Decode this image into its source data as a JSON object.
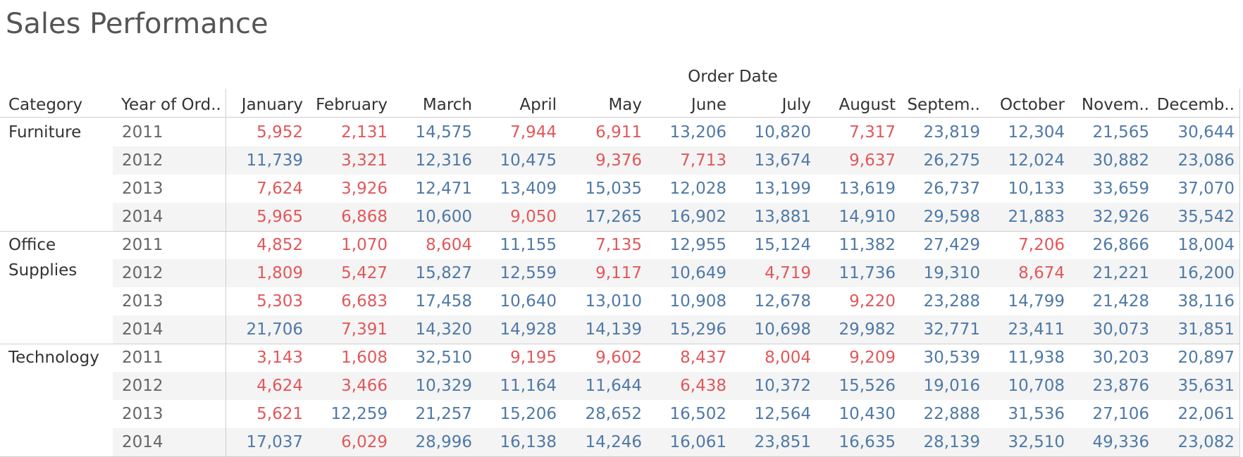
{
  "title": "Sales Performance",
  "colors": {
    "below_target": "#e2575a",
    "above_target": "#4e79a7",
    "text": "#333333",
    "year_text": "#666666",
    "band": "#f4f4f4"
  },
  "chart_data": {
    "type": "table",
    "column_group_header": "Order Date",
    "row_headers": [
      "Category",
      "Year of Ord.."
    ],
    "columns": [
      "January",
      "February",
      "March",
      "April",
      "May",
      "June",
      "July",
      "August",
      "Septem..",
      "October",
      "Novem..",
      "Decemb.."
    ],
    "rows": [
      {
        "category": "Furniture",
        "year": "2011",
        "values": [
          "5,952",
          "2,131",
          "14,575",
          "7,944",
          "6,911",
          "13,206",
          "10,820",
          "7,317",
          "23,819",
          "12,304",
          "21,565",
          "30,644"
        ],
        "status": [
          "r",
          "r",
          "b",
          "r",
          "r",
          "b",
          "b",
          "r",
          "b",
          "b",
          "b",
          "b"
        ]
      },
      {
        "category": "Furniture",
        "year": "2012",
        "values": [
          "11,739",
          "3,321",
          "12,316",
          "10,475",
          "9,376",
          "7,713",
          "13,674",
          "9,637",
          "26,275",
          "12,024",
          "30,882",
          "23,086"
        ],
        "status": [
          "b",
          "r",
          "b",
          "b",
          "r",
          "r",
          "b",
          "r",
          "b",
          "b",
          "b",
          "b"
        ]
      },
      {
        "category": "Furniture",
        "year": "2013",
        "values": [
          "7,624",
          "3,926",
          "12,471",
          "13,409",
          "15,035",
          "12,028",
          "13,199",
          "13,619",
          "26,737",
          "10,133",
          "33,659",
          "37,070"
        ],
        "status": [
          "r",
          "r",
          "b",
          "b",
          "b",
          "b",
          "b",
          "b",
          "b",
          "b",
          "b",
          "b"
        ]
      },
      {
        "category": "Furniture",
        "year": "2014",
        "values": [
          "5,965",
          "6,868",
          "10,600",
          "9,050",
          "17,265",
          "16,902",
          "13,881",
          "14,910",
          "29,598",
          "21,883",
          "32,926",
          "35,542"
        ],
        "status": [
          "r",
          "r",
          "b",
          "r",
          "b",
          "b",
          "b",
          "b",
          "b",
          "b",
          "b",
          "b"
        ]
      },
      {
        "category": "Office Supplies",
        "year": "2011",
        "values": [
          "4,852",
          "1,070",
          "8,604",
          "11,155",
          "7,135",
          "12,955",
          "15,124",
          "11,382",
          "27,429",
          "7,206",
          "26,866",
          "18,004"
        ],
        "status": [
          "r",
          "r",
          "r",
          "b",
          "r",
          "b",
          "b",
          "b",
          "b",
          "r",
          "b",
          "b"
        ]
      },
      {
        "category": "Office Supplies",
        "year": "2012",
        "values": [
          "1,809",
          "5,427",
          "15,827",
          "12,559",
          "9,117",
          "10,649",
          "4,719",
          "11,736",
          "19,310",
          "8,674",
          "21,221",
          "16,200"
        ],
        "status": [
          "r",
          "r",
          "b",
          "b",
          "r",
          "b",
          "r",
          "b",
          "b",
          "r",
          "b",
          "b"
        ]
      },
      {
        "category": "Office Supplies",
        "year": "2013",
        "values": [
          "5,303",
          "6,683",
          "17,458",
          "10,640",
          "13,010",
          "10,908",
          "12,678",
          "9,220",
          "23,288",
          "14,799",
          "21,428",
          "38,116"
        ],
        "status": [
          "r",
          "r",
          "b",
          "b",
          "b",
          "b",
          "b",
          "r",
          "b",
          "b",
          "b",
          "b"
        ]
      },
      {
        "category": "Office Supplies",
        "year": "2014",
        "values": [
          "21,706",
          "7,391",
          "14,320",
          "14,928",
          "14,139",
          "15,296",
          "10,698",
          "29,982",
          "32,771",
          "23,411",
          "30,073",
          "31,851"
        ],
        "status": [
          "b",
          "r",
          "b",
          "b",
          "b",
          "b",
          "b",
          "b",
          "b",
          "b",
          "b",
          "b"
        ]
      },
      {
        "category": "Technology",
        "year": "2011",
        "values": [
          "3,143",
          "1,608",
          "32,510",
          "9,195",
          "9,602",
          "8,437",
          "8,004",
          "9,209",
          "30,539",
          "11,938",
          "30,203",
          "20,897"
        ],
        "status": [
          "r",
          "r",
          "b",
          "r",
          "r",
          "r",
          "r",
          "r",
          "b",
          "b",
          "b",
          "b"
        ]
      },
      {
        "category": "Technology",
        "year": "2012",
        "values": [
          "4,624",
          "3,466",
          "10,329",
          "11,164",
          "11,644",
          "6,438",
          "10,372",
          "15,526",
          "19,016",
          "10,708",
          "23,876",
          "35,631"
        ],
        "status": [
          "r",
          "r",
          "b",
          "b",
          "b",
          "r",
          "b",
          "b",
          "b",
          "b",
          "b",
          "b"
        ]
      },
      {
        "category": "Technology",
        "year": "2013",
        "values": [
          "5,621",
          "12,259",
          "21,257",
          "15,206",
          "28,652",
          "16,502",
          "12,564",
          "10,430",
          "22,888",
          "31,536",
          "27,106",
          "22,061"
        ],
        "status": [
          "r",
          "b",
          "b",
          "b",
          "b",
          "b",
          "b",
          "b",
          "b",
          "b",
          "b",
          "b"
        ]
      },
      {
        "category": "Technology",
        "year": "2014",
        "values": [
          "17,037",
          "6,029",
          "28,996",
          "16,138",
          "14,246",
          "16,061",
          "23,851",
          "16,635",
          "28,139",
          "32,510",
          "49,336",
          "23,082"
        ],
        "status": [
          "b",
          "r",
          "b",
          "b",
          "b",
          "b",
          "b",
          "b",
          "b",
          "b",
          "b",
          "b"
        ]
      }
    ],
    "categories": [
      {
        "label_lines": [
          "Furniture"
        ],
        "row_count": 4
      },
      {
        "label_lines": [
          "Office",
          "Supplies"
        ],
        "row_count": 4
      },
      {
        "label_lines": [
          "Technology"
        ],
        "row_count": 4
      }
    ]
  }
}
